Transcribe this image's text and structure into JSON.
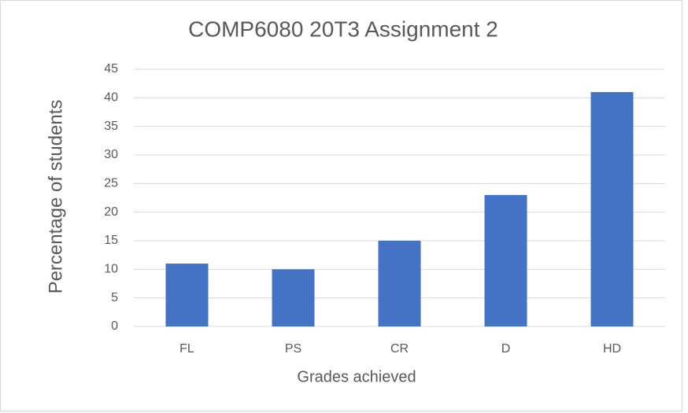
{
  "chart_data": {
    "type": "bar",
    "title": "COMP6080 20T3 Assignment 2",
    "x_label": "Grades achieved",
    "y_label": "Percentage of students",
    "categories": [
      "FL",
      "PS",
      "CR",
      "D",
      "HD"
    ],
    "values": [
      11,
      10,
      15,
      23,
      41
    ],
    "color": "#4472c4",
    "ylim": [
      0,
      45
    ],
    "yticks": [
      0,
      5,
      10,
      15,
      20,
      25,
      30,
      35,
      40,
      45
    ],
    "grid": true
  }
}
